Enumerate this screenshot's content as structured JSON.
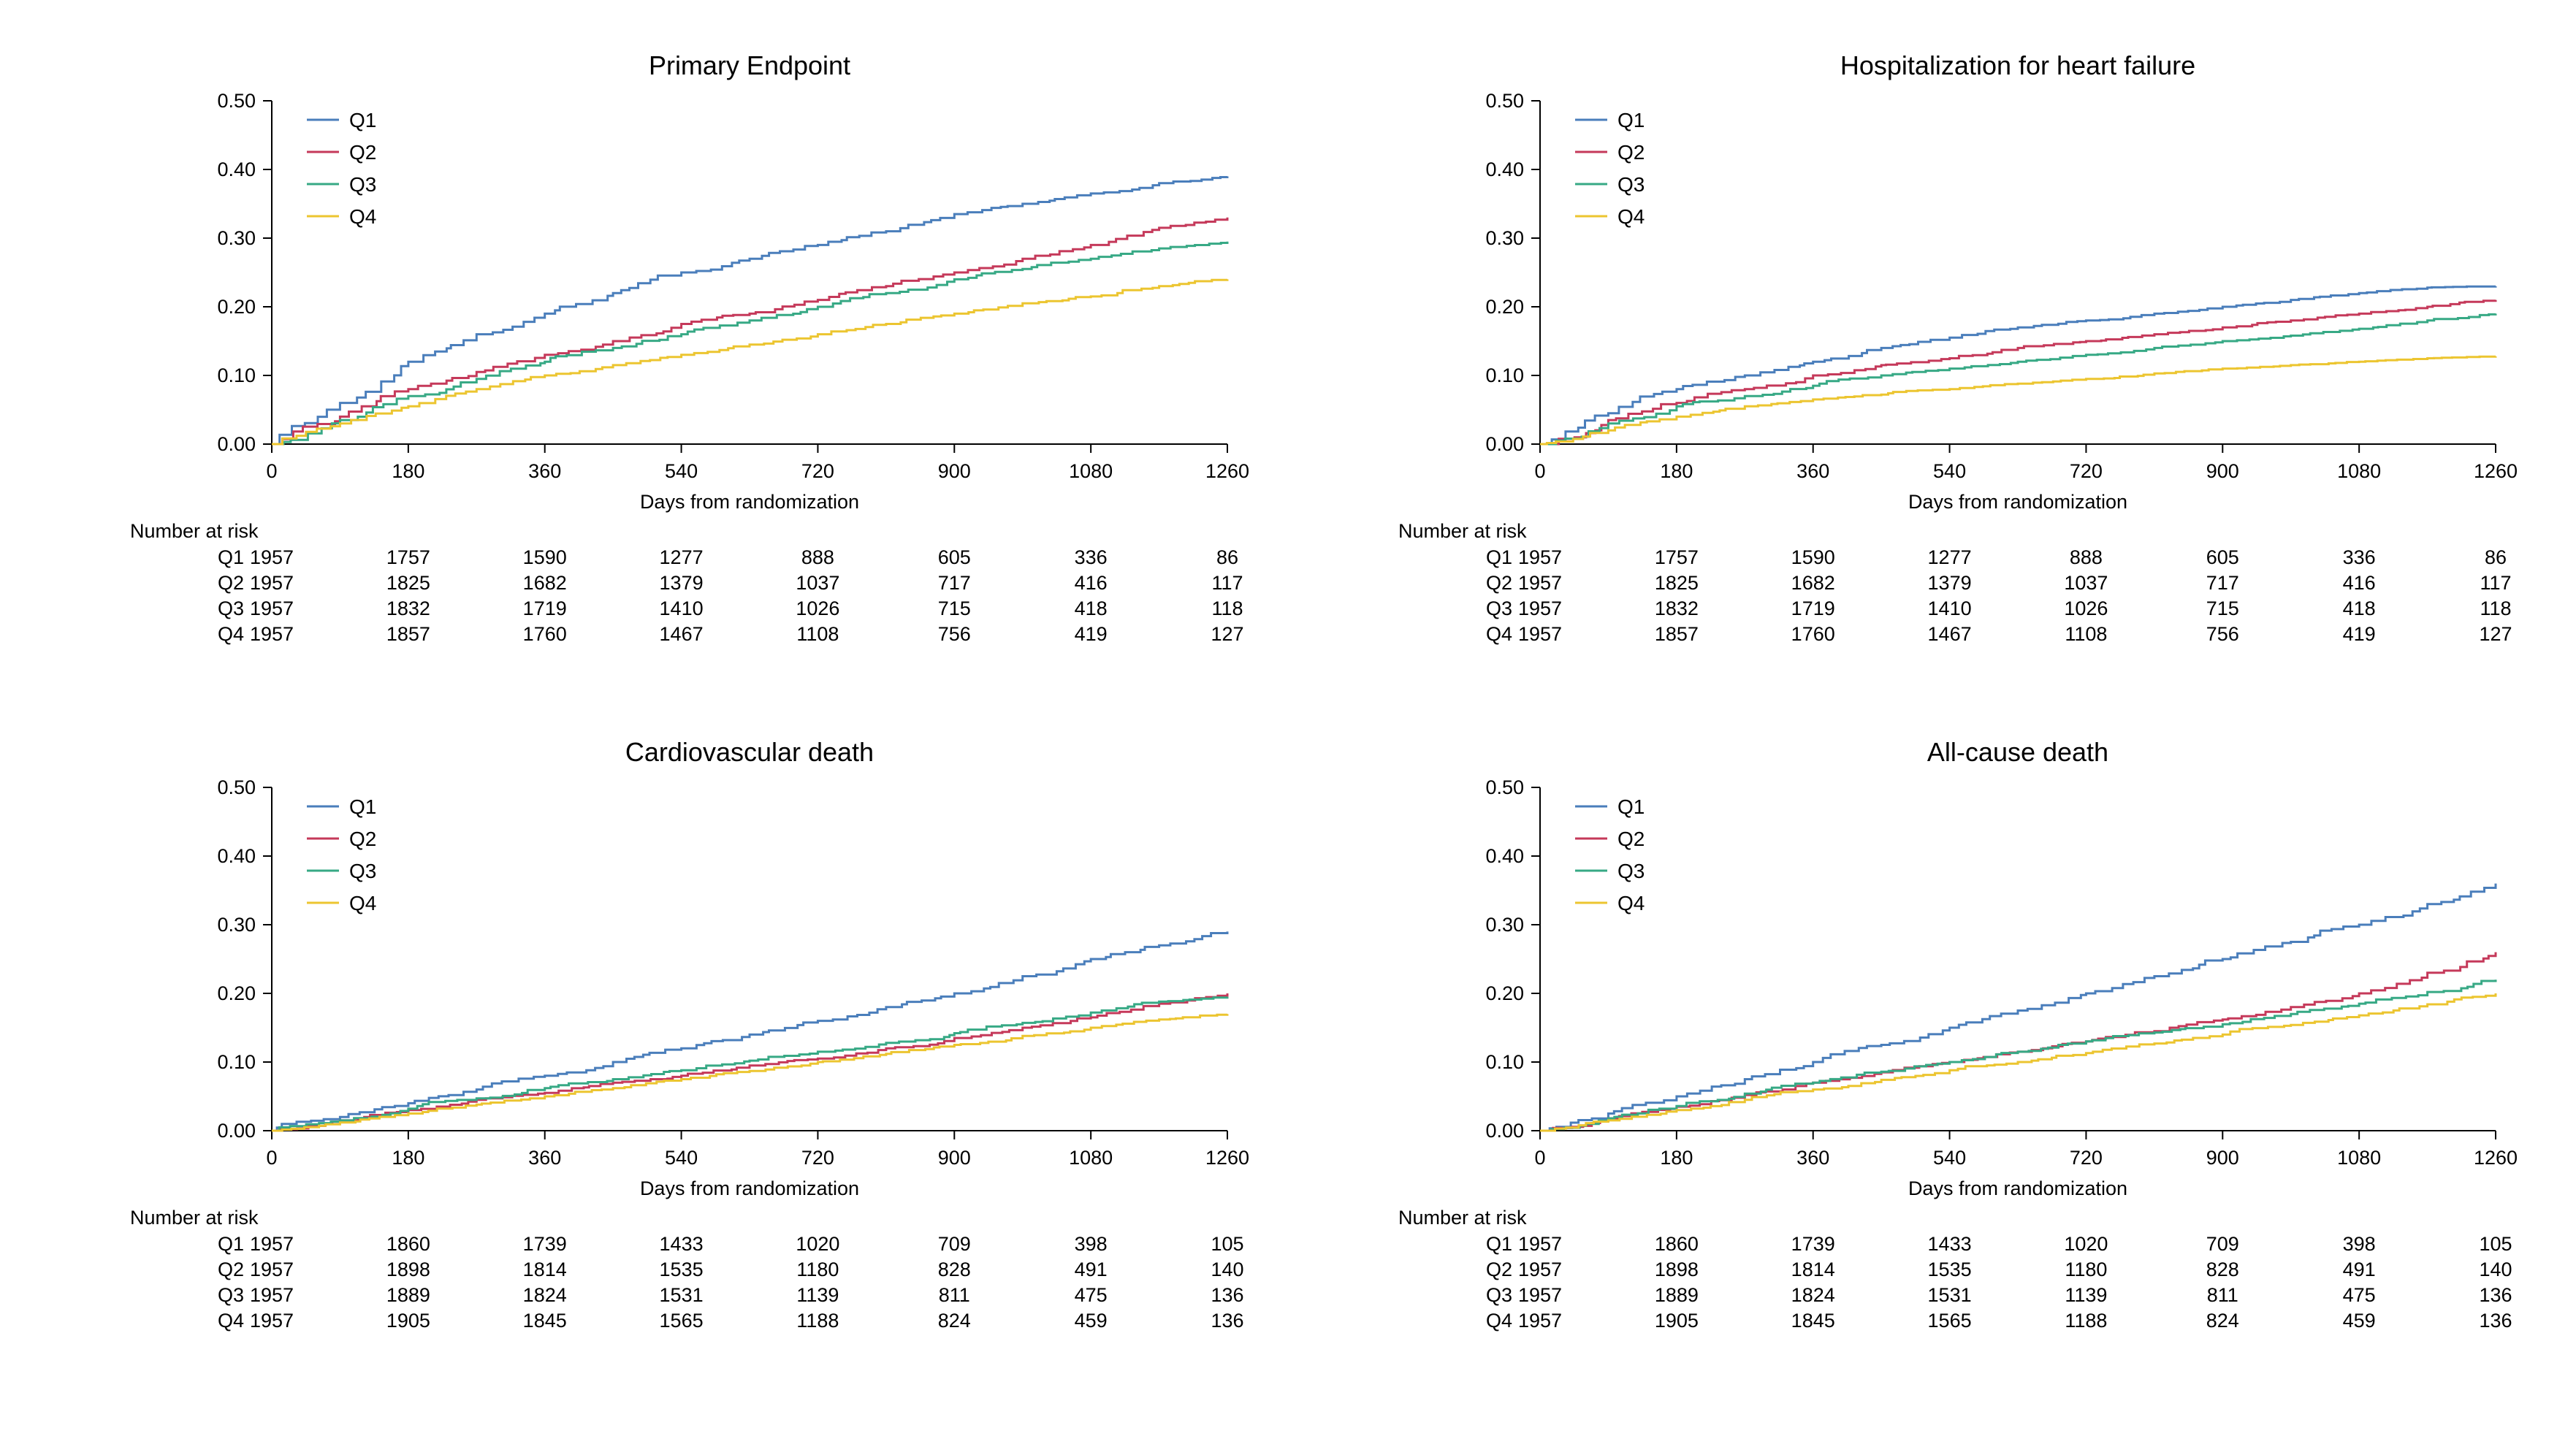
{
  "figure": {
    "background": "#ffffff",
    "text_color": "#000000",
    "axis_color": "#000000"
  },
  "colors": {
    "q1": "#4a7ebb",
    "q2": "#c5395a",
    "q3": "#37a985",
    "q4": "#ecc530"
  },
  "chart_data": [
    {
      "type": "line",
      "subtype": "kaplan-meier-cumulative-incidence",
      "title": "Primary Endpoint",
      "xlabel": "Days from randomization",
      "ylabel": "",
      "xlim": [
        0,
        1260
      ],
      "ylim": [
        0,
        0.5
      ],
      "xticks": [
        0,
        180,
        360,
        540,
        720,
        900,
        1080,
        1260
      ],
      "yticks": [
        "0.00",
        "0.10",
        "0.20",
        "0.30",
        "0.40",
        "0.50"
      ],
      "grid": false,
      "legend_position": "top-left-inside",
      "x": [
        0,
        90,
        180,
        270,
        360,
        450,
        540,
        630,
        720,
        810,
        900,
        990,
        1080,
        1170,
        1260
      ],
      "series": [
        {
          "name": "Q1",
          "color": "#4a7ebb",
          "values": [
            0,
            0.06,
            0.12,
            0.16,
            0.19,
            0.22,
            0.25,
            0.27,
            0.29,
            0.31,
            0.335,
            0.35,
            0.365,
            0.38,
            0.39
          ]
        },
        {
          "name": "Q2",
          "color": "#c5395a",
          "values": [
            0,
            0.04,
            0.08,
            0.105,
            0.13,
            0.15,
            0.175,
            0.19,
            0.21,
            0.23,
            0.25,
            0.27,
            0.29,
            0.315,
            0.33
          ]
        },
        {
          "name": "Q3",
          "color": "#37a985",
          "values": [
            0,
            0.035,
            0.07,
            0.095,
            0.12,
            0.14,
            0.16,
            0.18,
            0.2,
            0.22,
            0.24,
            0.255,
            0.27,
            0.285,
            0.295
          ]
        },
        {
          "name": "Q4",
          "color": "#ecc530",
          "values": [
            0,
            0.03,
            0.055,
            0.08,
            0.1,
            0.115,
            0.13,
            0.145,
            0.16,
            0.175,
            0.19,
            0.205,
            0.215,
            0.23,
            0.24
          ]
        }
      ],
      "risk_table": {
        "header": "Number at risk",
        "timepoints": [
          0,
          180,
          360,
          540,
          720,
          900,
          1080,
          1260
        ],
        "rows": [
          {
            "name": "Q1",
            "values": [
              1957,
              1757,
              1590,
              1277,
              888,
              605,
              336,
              86
            ]
          },
          {
            "name": "Q2",
            "values": [
              1957,
              1825,
              1682,
              1379,
              1037,
              717,
              416,
              117
            ]
          },
          {
            "name": "Q3",
            "values": [
              1957,
              1832,
              1719,
              1410,
              1026,
              715,
              418,
              118
            ]
          },
          {
            "name": "Q4",
            "values": [
              1957,
              1857,
              1760,
              1467,
              1108,
              756,
              419,
              127
            ]
          }
        ]
      }
    },
    {
      "type": "line",
      "subtype": "kaplan-meier-cumulative-incidence",
      "title": "Hospitalization for heart failure",
      "xlabel": "Days from randomization",
      "ylabel": "",
      "xlim": [
        0,
        1260
      ],
      "ylim": [
        0,
        0.5
      ],
      "xticks": [
        0,
        180,
        360,
        540,
        720,
        900,
        1080,
        1260
      ],
      "yticks": [
        "0.00",
        "0.10",
        "0.20",
        "0.30",
        "0.40",
        "0.50"
      ],
      "grid": false,
      "legend_position": "top-left-inside",
      "x": [
        0,
        90,
        180,
        270,
        360,
        450,
        540,
        630,
        720,
        810,
        900,
        990,
        1080,
        1170,
        1260
      ],
      "series": [
        {
          "name": "Q1",
          "color": "#4a7ebb",
          "values": [
            0,
            0.045,
            0.08,
            0.1,
            0.12,
            0.14,
            0.155,
            0.17,
            0.18,
            0.19,
            0.2,
            0.21,
            0.22,
            0.228,
            0.23
          ]
        },
        {
          "name": "Q2",
          "color": "#c5395a",
          "values": [
            0,
            0.035,
            0.06,
            0.08,
            0.1,
            0.115,
            0.125,
            0.14,
            0.15,
            0.16,
            0.17,
            0.18,
            0.19,
            0.2,
            0.21
          ]
        },
        {
          "name": "Q3",
          "color": "#37a985",
          "values": [
            0,
            0.03,
            0.055,
            0.07,
            0.085,
            0.1,
            0.11,
            0.12,
            0.13,
            0.14,
            0.15,
            0.158,
            0.168,
            0.18,
            0.19
          ]
        },
        {
          "name": "Q4",
          "color": "#ecc530",
          "values": [
            0,
            0.02,
            0.04,
            0.055,
            0.065,
            0.072,
            0.08,
            0.088,
            0.095,
            0.103,
            0.11,
            0.115,
            0.12,
            0.125,
            0.128
          ]
        }
      ],
      "risk_table": {
        "header": "Number at risk",
        "timepoints": [
          0,
          180,
          360,
          540,
          720,
          900,
          1080,
          1260
        ],
        "rows": [
          {
            "name": "Q1",
            "values": [
              1957,
              1757,
              1590,
              1277,
              888,
              605,
              336,
              86
            ]
          },
          {
            "name": "Q2",
            "values": [
              1957,
              1825,
              1682,
              1379,
              1037,
              717,
              416,
              117
            ]
          },
          {
            "name": "Q3",
            "values": [
              1957,
              1832,
              1719,
              1410,
              1026,
              715,
              418,
              118
            ]
          },
          {
            "name": "Q4",
            "values": [
              1957,
              1857,
              1760,
              1467,
              1108,
              756,
              419,
              127
            ]
          }
        ]
      }
    },
    {
      "type": "line",
      "subtype": "kaplan-meier-cumulative-incidence",
      "title": "Cardiovascular death",
      "xlabel": "Days from randomization",
      "ylabel": "",
      "xlim": [
        0,
        1260
      ],
      "ylim": [
        0,
        0.5
      ],
      "xticks": [
        0,
        180,
        360,
        540,
        720,
        900,
        1080,
        1260
      ],
      "yticks": [
        "0.00",
        "0.10",
        "0.20",
        "0.30",
        "0.40",
        "0.50"
      ],
      "grid": false,
      "legend_position": "top-left-inside",
      "x": [
        0,
        90,
        180,
        270,
        360,
        450,
        540,
        630,
        720,
        810,
        900,
        990,
        1080,
        1170,
        1260
      ],
      "series": [
        {
          "name": "Q1",
          "color": "#4a7ebb",
          "values": [
            0,
            0.02,
            0.04,
            0.06,
            0.08,
            0.1,
            0.12,
            0.14,
            0.16,
            0.18,
            0.2,
            0.225,
            0.25,
            0.27,
            0.29
          ]
        },
        {
          "name": "Q2",
          "color": "#c5395a",
          "values": [
            0,
            0.015,
            0.03,
            0.045,
            0.055,
            0.07,
            0.08,
            0.095,
            0.105,
            0.12,
            0.135,
            0.15,
            0.165,
            0.185,
            0.2
          ]
        },
        {
          "name": "Q3",
          "color": "#37a985",
          "values": [
            0,
            0.015,
            0.032,
            0.047,
            0.062,
            0.075,
            0.088,
            0.102,
            0.115,
            0.128,
            0.142,
            0.157,
            0.172,
            0.188,
            0.195
          ]
        },
        {
          "name": "Q4",
          "color": "#ecc530",
          "values": [
            0,
            0.012,
            0.025,
            0.038,
            0.05,
            0.062,
            0.075,
            0.087,
            0.1,
            0.112,
            0.125,
            0.138,
            0.15,
            0.162,
            0.17
          ]
        }
      ],
      "risk_table": {
        "header": "Number at risk",
        "timepoints": [
          0,
          180,
          360,
          540,
          720,
          900,
          1080,
          1260
        ],
        "rows": [
          {
            "name": "Q1",
            "values": [
              1957,
              1860,
              1739,
              1433,
              1020,
              709,
              398,
              105
            ]
          },
          {
            "name": "Q2",
            "values": [
              1957,
              1898,
              1814,
              1535,
              1180,
              828,
              491,
              140
            ]
          },
          {
            "name": "Q3",
            "values": [
              1957,
              1889,
              1824,
              1531,
              1139,
              811,
              475,
              136
            ]
          },
          {
            "name": "Q4",
            "values": [
              1957,
              1905,
              1845,
              1565,
              1188,
              824,
              459,
              136
            ]
          }
        ]
      }
    },
    {
      "type": "line",
      "subtype": "kaplan-meier-cumulative-incidence",
      "title": "All-cause death",
      "xlabel": "Days from randomization",
      "ylabel": "",
      "xlim": [
        0,
        1260
      ],
      "ylim": [
        0,
        0.5
      ],
      "xticks": [
        0,
        180,
        360,
        540,
        720,
        900,
        1080,
        1260
      ],
      "yticks": [
        "0.00",
        "0.10",
        "0.20",
        "0.30",
        "0.40",
        "0.50"
      ],
      "grid": false,
      "legend_position": "top-left-inside",
      "x": [
        0,
        90,
        180,
        270,
        360,
        450,
        540,
        630,
        720,
        810,
        900,
        990,
        1080,
        1170,
        1260
      ],
      "series": [
        {
          "name": "Q1",
          "color": "#4a7ebb",
          "values": [
            0,
            0.025,
            0.05,
            0.075,
            0.1,
            0.125,
            0.15,
            0.175,
            0.2,
            0.225,
            0.25,
            0.275,
            0.3,
            0.33,
            0.36
          ]
        },
        {
          "name": "Q2",
          "color": "#c5395a",
          "values": [
            0,
            0.018,
            0.035,
            0.052,
            0.07,
            0.085,
            0.1,
            0.115,
            0.13,
            0.145,
            0.162,
            0.18,
            0.2,
            0.23,
            0.26
          ]
        },
        {
          "name": "Q3",
          "color": "#37a985",
          "values": [
            0,
            0.018,
            0.036,
            0.054,
            0.07,
            0.086,
            0.1,
            0.115,
            0.13,
            0.143,
            0.155,
            0.17,
            0.185,
            0.202,
            0.22
          ]
        },
        {
          "name": "Q4",
          "color": "#ecc530",
          "values": [
            0,
            0.015,
            0.03,
            0.045,
            0.06,
            0.074,
            0.088,
            0.1,
            0.113,
            0.127,
            0.14,
            0.154,
            0.168,
            0.184,
            0.2
          ]
        }
      ],
      "risk_table": {
        "header": "Number at risk",
        "timepoints": [
          0,
          180,
          360,
          540,
          720,
          900,
          1080,
          1260
        ],
        "rows": [
          {
            "name": "Q1",
            "values": [
              1957,
              1860,
              1739,
              1433,
              1020,
              709,
              398,
              105
            ]
          },
          {
            "name": "Q2",
            "values": [
              1957,
              1898,
              1814,
              1535,
              1180,
              828,
              491,
              140
            ]
          },
          {
            "name": "Q3",
            "values": [
              1957,
              1889,
              1824,
              1531,
              1139,
              811,
              475,
              136
            ]
          },
          {
            "name": "Q4",
            "values": [
              1957,
              1905,
              1845,
              1565,
              1188,
              824,
              459,
              136
            ]
          }
        ]
      }
    }
  ]
}
